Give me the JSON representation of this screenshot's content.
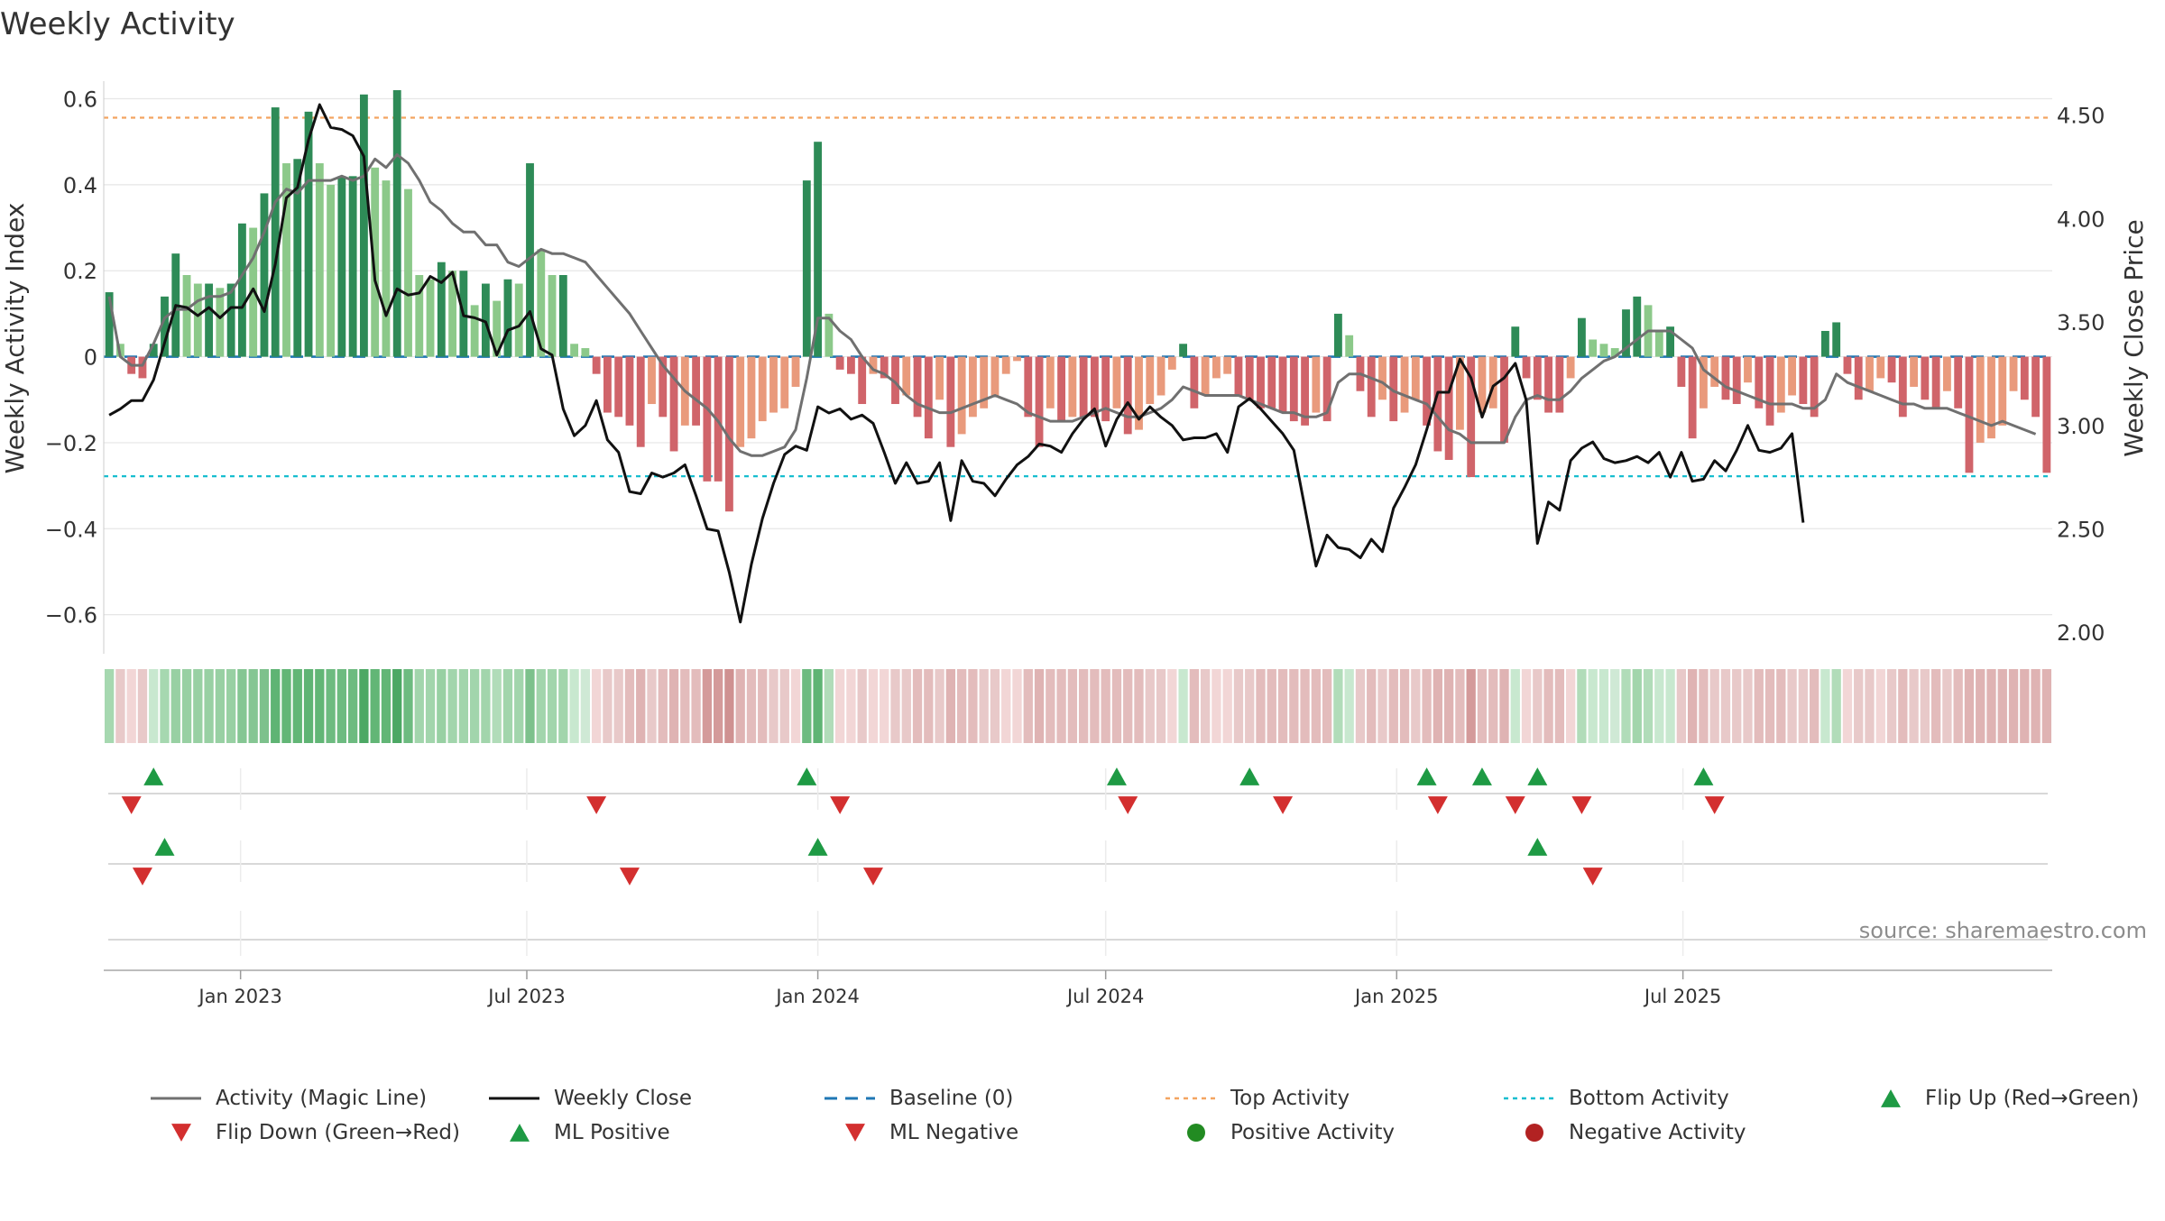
{
  "chart_data": {
    "type": "bar",
    "title": "Weekly Activity",
    "ylabel": "Weekly Activity Index",
    "y2label": "Weekly Close Price",
    "ylim": [
      -0.67,
      0.62
    ],
    "y2lim": [
      1.94,
      4.62
    ],
    "yticks": [
      0.6,
      0.4,
      0.2,
      0,
      -0.2,
      -0.4,
      -0.6
    ],
    "ytick_labels": [
      "0.6",
      "0.4",
      "0.2",
      "0",
      "−0.2",
      "−0.4",
      "−0.6"
    ],
    "y2ticks": [
      4.5,
      4.0,
      3.5,
      3.0,
      2.5,
      2.0
    ],
    "y2tick_labels": [
      "4.50",
      "4.00",
      "3.50",
      "3.00",
      "2.50",
      "2.00"
    ],
    "x_start": "2022-10-10",
    "x_step_weeks": 1,
    "x_ticks": [
      {
        "date": "2023-01-01",
        "label": "Jan 2023"
      },
      {
        "date": "2023-07-01",
        "label": "Jul 2023"
      },
      {
        "date": "2024-01-01",
        "label": "Jan 2024"
      },
      {
        "date": "2024-07-01",
        "label": "Jul 2024"
      },
      {
        "date": "2025-01-01",
        "label": "Jan 2025"
      },
      {
        "date": "2025-07-01",
        "label": "Jul 2025"
      }
    ],
    "top_activity": 0.556,
    "bottom_activity": -0.278,
    "baseline": 0,
    "activity": [
      0.15,
      0.03,
      -0.04,
      -0.05,
      0.03,
      0.14,
      0.24,
      0.19,
      0.17,
      0.17,
      0.16,
      0.17,
      0.31,
      0.3,
      0.38,
      0.58,
      0.45,
      0.46,
      0.57,
      0.45,
      0.4,
      0.42,
      0.42,
      0.61,
      0.44,
      0.41,
      0.62,
      0.39,
      0.19,
      0.18,
      0.22,
      0.2,
      0.2,
      0.12,
      0.17,
      0.13,
      0.18,
      0.17,
      0.45,
      0.25,
      0.19,
      0.19,
      0.03,
      0.02,
      -0.04,
      -0.13,
      -0.14,
      -0.16,
      -0.21,
      -0.11,
      -0.14,
      -0.22,
      -0.16,
      -0.16,
      -0.29,
      -0.29,
      -0.36,
      -0.21,
      -0.19,
      -0.15,
      -0.13,
      -0.12,
      -0.07,
      0.41,
      0.5,
      0.1,
      -0.03,
      -0.04,
      -0.11,
      -0.04,
      -0.05,
      -0.11,
      -0.09,
      -0.14,
      -0.19,
      -0.1,
      -0.21,
      -0.18,
      -0.14,
      -0.12,
      -0.09,
      -0.04,
      -0.01,
      -0.14,
      -0.21,
      -0.12,
      -0.15,
      -0.14,
      -0.14,
      -0.14,
      -0.15,
      -0.12,
      -0.18,
      -0.17,
      -0.11,
      -0.09,
      -0.03,
      0.03,
      -0.12,
      -0.09,
      -0.05,
      -0.04,
      -0.09,
      -0.1,
      -0.12,
      -0.12,
      -0.13,
      -0.15,
      -0.16,
      -0.13,
      -0.15,
      0.1,
      0.05,
      -0.08,
      -0.14,
      -0.1,
      -0.15,
      -0.13,
      -0.1,
      -0.16,
      -0.22,
      -0.24,
      -0.17,
      -0.28,
      -0.13,
      -0.12,
      -0.2,
      0.07,
      -0.05,
      -0.1,
      -0.13,
      -0.13,
      -0.05,
      0.09,
      0.04,
      0.03,
      0.02,
      0.11,
      0.14,
      0.12,
      0.06,
      0.07,
      -0.07,
      -0.19,
      -0.12,
      -0.07,
      -0.1,
      -0.11,
      -0.06,
      -0.12,
      -0.16,
      -0.13,
      -0.09,
      -0.11,
      -0.14,
      0.06,
      0.08,
      -0.04,
      -0.1,
      -0.08,
      -0.05,
      -0.06,
      -0.14,
      -0.07,
      -0.1,
      -0.12,
      -0.08,
      -0.12,
      -0.27,
      -0.2,
      -0.19,
      -0.16,
      -0.08,
      -0.1,
      -0.14,
      -0.27
    ],
    "magic_line": [
      0.14,
      0.0,
      -0.02,
      -0.02,
      0.03,
      0.09,
      0.11,
      0.11,
      0.13,
      0.14,
      0.14,
      0.15,
      0.19,
      0.23,
      0.29,
      0.36,
      0.39,
      0.38,
      0.41,
      0.41,
      0.41,
      0.42,
      0.41,
      0.42,
      0.46,
      0.44,
      0.47,
      0.45,
      0.41,
      0.36,
      0.34,
      0.31,
      0.29,
      0.29,
      0.26,
      0.26,
      0.22,
      0.21,
      0.23,
      0.25,
      0.24,
      0.24,
      0.23,
      0.22,
      0.19,
      0.16,
      0.13,
      0.1,
      0.06,
      0.02,
      -0.02,
      -0.05,
      -0.08,
      -0.1,
      -0.12,
      -0.15,
      -0.19,
      -0.22,
      -0.23,
      -0.23,
      -0.22,
      -0.21,
      -0.17,
      -0.05,
      0.09,
      0.09,
      0.06,
      0.04,
      0.0,
      -0.03,
      -0.04,
      -0.06,
      -0.09,
      -0.11,
      -0.12,
      -0.13,
      -0.13,
      -0.12,
      -0.11,
      -0.1,
      -0.09,
      -0.1,
      -0.11,
      -0.13,
      -0.14,
      -0.15,
      -0.15,
      -0.15,
      -0.14,
      -0.13,
      -0.12,
      -0.13,
      -0.14,
      -0.14,
      -0.13,
      -0.12,
      -0.1,
      -0.07,
      -0.08,
      -0.09,
      -0.09,
      -0.09,
      -0.09,
      -0.1,
      -0.11,
      -0.12,
      -0.13,
      -0.13,
      -0.14,
      -0.14,
      -0.13,
      -0.06,
      -0.04,
      -0.04,
      -0.05,
      -0.06,
      -0.08,
      -0.09,
      -0.1,
      -0.11,
      -0.14,
      -0.17,
      -0.18,
      -0.2,
      -0.2,
      -0.2,
      -0.2,
      -0.14,
      -0.1,
      -0.09,
      -0.1,
      -0.1,
      -0.08,
      -0.05,
      -0.03,
      -0.01,
      0.0,
      0.02,
      0.04,
      0.06,
      0.06,
      0.06,
      0.04,
      0.02,
      -0.03,
      -0.05,
      -0.07,
      -0.08,
      -0.09,
      -0.1,
      -0.11,
      -0.11,
      -0.11,
      -0.12,
      -0.12,
      -0.1,
      -0.04,
      -0.06,
      -0.07,
      -0.08,
      -0.09,
      -0.1,
      -0.11,
      -0.11,
      -0.12,
      -0.12,
      -0.12,
      -0.13,
      -0.14,
      -0.15,
      -0.16,
      -0.15,
      -0.16,
      -0.17,
      -0.18
    ],
    "weekly_close": [
      3.05,
      3.08,
      3.12,
      3.12,
      3.22,
      3.4,
      3.58,
      3.57,
      3.53,
      3.57,
      3.52,
      3.57,
      3.57,
      3.66,
      3.55,
      3.78,
      4.1,
      4.15,
      4.38,
      4.55,
      4.44,
      4.43,
      4.4,
      4.3,
      3.7,
      3.53,
      3.66,
      3.63,
      3.64,
      3.72,
      3.69,
      3.74,
      3.53,
      3.52,
      3.5,
      3.34,
      3.46,
      3.48,
      3.55,
      3.37,
      3.34,
      3.08,
      2.95,
      3.0,
      3.12,
      2.93,
      2.87,
      2.68,
      2.67,
      2.77,
      2.75,
      2.77,
      2.81,
      2.66,
      2.5,
      2.49,
      2.29,
      2.05,
      2.33,
      2.55,
      2.72,
      2.86,
      2.9,
      2.88,
      3.09,
      3.06,
      3.08,
      3.03,
      3.05,
      3.01,
      2.87,
      2.72,
      2.82,
      2.72,
      2.73,
      2.82,
      2.54,
      2.83,
      2.73,
      2.72,
      2.66,
      2.74,
      2.81,
      2.85,
      2.91,
      2.9,
      2.87,
      2.96,
      3.03,
      3.08,
      2.9,
      3.03,
      3.11,
      3.03,
      3.09,
      3.04,
      3.0,
      2.93,
      2.94,
      2.94,
      2.96,
      2.87,
      3.09,
      3.13,
      3.08,
      3.02,
      2.96,
      2.88,
      2.6,
      2.32,
      2.47,
      2.41,
      2.4,
      2.36,
      2.45,
      2.39,
      2.6,
      2.7,
      2.81,
      2.98,
      3.16,
      3.16,
      3.32,
      3.23,
      3.04,
      3.19,
      3.23,
      3.3,
      3.12,
      2.43,
      2.63,
      2.59,
      2.83,
      2.89,
      2.92,
      2.84,
      2.82,
      2.83,
      2.85,
      2.82,
      2.87,
      2.75,
      2.87,
      2.73,
      2.74,
      2.83,
      2.78,
      2.88,
      3.0,
      2.88,
      2.87,
      2.89,
      2.96,
      2.53
    ],
    "heat_colors": [
      "#a6d8b0",
      "#e8c9c9",
      "#f2d6d6",
      "#e8c9c9",
      "#c8e8cf",
      "#a6d8b0",
      "#98d0a3",
      "#98d0a3",
      "#98d0a3",
      "#98d0a3",
      "#98d0a3",
      "#98d0a3",
      "#85c693",
      "#85c693",
      "#7dc18c",
      "#5fb474",
      "#62b676",
      "#62b676",
      "#5fb474",
      "#62b676",
      "#6dbb80",
      "#6dbb80",
      "#6dbb80",
      "#4ca864",
      "#62b676",
      "#62b676",
      "#4ca864",
      "#6dbb80",
      "#a2d5ac",
      "#a2d5ac",
      "#98d0a3",
      "#a2d5ac",
      "#a2d5ac",
      "#a2d5ac",
      "#a2d5ac",
      "#b1dcb9",
      "#a2d5ac",
      "#a2d5ac",
      "#7dc18c",
      "#a2d5ac",
      "#a2d5ac",
      "#a2d5ac",
      "#c8e8cf",
      "#cfe9d5",
      "#f2d6d6",
      "#e8c9c9",
      "#e8c9c9",
      "#e3bcbc",
      "#dfb3b3",
      "#e8c9c9",
      "#e3bcbc",
      "#dfb3b3",
      "#e3bcbc",
      "#e3bcbc",
      "#d49a9a",
      "#d49a9a",
      "#cf9191",
      "#dfb3b3",
      "#e3bcbc",
      "#e3bcbc",
      "#e8c9c9",
      "#e8c9c9",
      "#f2d6d6",
      "#6dbb80",
      "#5fb474",
      "#b1dcb9",
      "#f2d6d6",
      "#f2d6d6",
      "#e8c9c9",
      "#f2d6d6",
      "#f2d6d6",
      "#e8c9c9",
      "#e8c9c9",
      "#e3bcbc",
      "#e3bcbc",
      "#e8c9c9",
      "#dfb3b3",
      "#e3bcbc",
      "#e3bcbc",
      "#e8c9c9",
      "#e8c9c9",
      "#f2d6d6",
      "#f2d6d6",
      "#e3bcbc",
      "#dfb3b3",
      "#e3bcbc",
      "#e3bcbc",
      "#e3bcbc",
      "#e3bcbc",
      "#e3bcbc",
      "#e3bcbc",
      "#e3bcbc",
      "#e3bcbc",
      "#e3bcbc",
      "#e8c9c9",
      "#e8c9c9",
      "#f2d6d6",
      "#c8e8cf",
      "#e3bcbc",
      "#e8c9c9",
      "#f2d6d6",
      "#f2d6d6",
      "#e8c9c9",
      "#e8c9c9",
      "#e3bcbc",
      "#e3bcbc",
      "#e3bcbc",
      "#e3bcbc",
      "#e3bcbc",
      "#e3bcbc",
      "#e3bcbc",
      "#b1dcb9",
      "#c8e8cf",
      "#e8c9c9",
      "#e3bcbc",
      "#e8c9c9",
      "#e3bcbc",
      "#e3bcbc",
      "#e8c9c9",
      "#e3bcbc",
      "#dfb3b3",
      "#dfb3b3",
      "#e3bcbc",
      "#d49a9a",
      "#e3bcbc",
      "#e3bcbc",
      "#dfb3b3",
      "#c8e8cf",
      "#f2d6d6",
      "#e8c9c9",
      "#e3bcbc",
      "#e3bcbc",
      "#f2d6d6",
      "#b1dcb9",
      "#c8e8cf",
      "#c8e8cf",
      "#cfe9d5",
      "#b1dcb9",
      "#a2d5ac",
      "#b1dcb9",
      "#c8e8cf",
      "#c8e8cf",
      "#e8c9c9",
      "#dfb3b3",
      "#e3bcbc",
      "#e8c9c9",
      "#e8c9c9",
      "#e8c9c9",
      "#e8c9c9",
      "#e3bcbc",
      "#e3bcbc",
      "#e3bcbc",
      "#e8c9c9",
      "#e8c9c9",
      "#e3bcbc",
      "#c8e8cf",
      "#b1dcb9",
      "#f2d6d6",
      "#e8c9c9",
      "#e8c9c9",
      "#f2d6d6",
      "#e8c9c9",
      "#e3bcbc",
      "#e8c9c9",
      "#e8c9c9",
      "#e3bcbc",
      "#e8c9c9",
      "#e3bcbc",
      "#dfb3b3",
      "#dfb3b3",
      "#dfb3b3",
      "#dfb3b3",
      "#dfb3b3",
      "#dfb3b3",
      "#dfb3b3",
      "#dfb3b3"
    ],
    "flip_up_weeks": [
      4,
      63,
      91,
      103,
      119,
      124,
      129,
      144
    ],
    "flip_down_weeks": [
      2,
      44,
      66,
      92,
      106,
      120,
      127,
      133,
      145
    ],
    "ml_positive_weeks": [
      5,
      64,
      129
    ],
    "ml_negative_weeks": [
      3,
      47,
      69,
      134
    ],
    "colors": {
      "pos_dark": "#2e8b57",
      "pos_light": "#8cc98a",
      "neg_dark": "#d0646a",
      "neg_light": "#e99a7c",
      "magic": "#707070",
      "close": "#111111",
      "baseline": "#1f77b4",
      "top": "#f4a460",
      "bottom": "#17becf",
      "flip_up": "#1e9a44",
      "flip_down": "#d32f2f",
      "pos_dot": "#228b22",
      "neg_dot": "#b22222",
      "grid": "#e6e6e6"
    },
    "source": "source: sharemaestro.com",
    "legend": [
      {
        "label": "Activity (Magic Line)",
        "kind": "line",
        "color": "#707070"
      },
      {
        "label": "Weekly Close",
        "kind": "line",
        "color": "#111111"
      },
      {
        "label": "Baseline (0)",
        "kind": "dash",
        "color": "#1f77b4"
      },
      {
        "label": "Top Activity",
        "kind": "dot",
        "color": "#f4a460"
      },
      {
        "label": "Bottom Activity",
        "kind": "dot",
        "color": "#17becf"
      },
      {
        "label": "Flip Up (Red→Green)",
        "kind": "tri-up",
        "color": "#1e9a44"
      },
      {
        "label": "Flip Down (Green→Red)",
        "kind": "tri-down",
        "color": "#d32f2f"
      },
      {
        "label": "ML Positive",
        "kind": "tri-up",
        "color": "#1e9a44"
      },
      {
        "label": "ML Negative",
        "kind": "tri-down",
        "color": "#d32f2f"
      },
      {
        "label": "Positive Activity",
        "kind": "circle",
        "color": "#228b22"
      },
      {
        "label": "Negative Activity",
        "kind": "circle",
        "color": "#b22222"
      }
    ]
  }
}
